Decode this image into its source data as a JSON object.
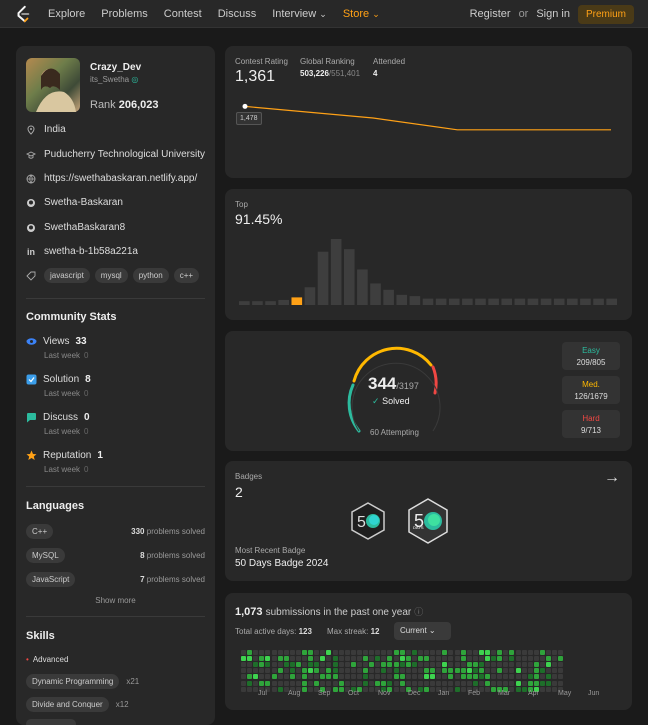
{
  "nav": {
    "items": [
      "Explore",
      "Problems",
      "Contest",
      "Discuss",
      "Interview",
      "Store"
    ],
    "register": "Register",
    "or": "or",
    "signin": "Sign in",
    "premium": "Premium",
    "chevron": "⌄"
  },
  "profile": {
    "name": "Crazy_Dev",
    "handle": "its_Swetha",
    "rank_label": "Rank",
    "rank": "206,023",
    "location": "India",
    "school": "Puducherry Technological University",
    "website": "https://swethabaskaran.netlify.app/",
    "github": "Swetha-Baskaran",
    "github2": "SwethaBaskaran8",
    "linkedin": "swetha-b-1b58a221a",
    "tags": [
      "javascript",
      "mysql",
      "python",
      "c++"
    ]
  },
  "community": {
    "title": "Community Stats",
    "items": [
      {
        "label": "Views",
        "value": "33",
        "last": "Last week",
        "last_val": "0",
        "color": "#3b82f6",
        "icon": "eye-icon"
      },
      {
        "label": "Solution",
        "value": "8",
        "last": "Last week",
        "last_val": "0",
        "color": "#3b9eea",
        "icon": "solution-icon"
      },
      {
        "label": "Discuss",
        "value": "0",
        "last": "Last week",
        "last_val": "0",
        "color": "#2cbb9e",
        "icon": "discuss-icon"
      },
      {
        "label": "Reputation",
        "value": "1",
        "last": "Last week",
        "last_val": "0",
        "color": "#ffa116",
        "icon": "star-icon"
      }
    ]
  },
  "languages": {
    "title": "Languages",
    "items": [
      {
        "name": "C++",
        "count": "330",
        "suffix": "problems solved"
      },
      {
        "name": "MySQL",
        "count": "8",
        "suffix": "problems solved"
      },
      {
        "name": "JavaScript",
        "count": "7",
        "suffix": "problems solved"
      }
    ],
    "show_more": "Show more"
  },
  "skills": {
    "title": "Skills",
    "level": "Advanced",
    "items": [
      {
        "name": "Dynamic Programming",
        "count": "x21"
      },
      {
        "name": "Divide and Conquer",
        "count": "x12"
      }
    ]
  },
  "contest": {
    "rating_label": "Contest Rating",
    "rating": "1,361",
    "global_label": "Global Ranking",
    "global": "503,226",
    "global_total": "/551,401",
    "attended_label": "Attended",
    "attended": "4",
    "tooltip": "1,478",
    "chart_data": {
      "type": "line",
      "x": [
        0,
        1,
        2,
        3
      ],
      "y": [
        1478,
        1420,
        1361,
        1361
      ],
      "ylim": [
        1300,
        1500
      ]
    }
  },
  "top": {
    "label": "Top",
    "value": "91.45%",
    "chart_data": {
      "type": "bar",
      "values": [
        3,
        3,
        3,
        4,
        6,
        14,
        42,
        52,
        44,
        28,
        17,
        12,
        8,
        7,
        5,
        5,
        5,
        5,
        5,
        5,
        5,
        5,
        5,
        5,
        5,
        5,
        5,
        5,
        5
      ],
      "highlight_index": 4
    }
  },
  "solved": {
    "solved": "344",
    "total": "/3197",
    "solved_label": "Solved",
    "check": "✓",
    "attempting": "60 Attempting",
    "easy_label": "Easy",
    "easy": "209/805",
    "med_label": "Med.",
    "med": "126/1679",
    "hard_label": "Hard",
    "hard": "9/713",
    "colors": {
      "easy": "#2cbb9e",
      "med": "#ffb800",
      "hard": "#ef4743"
    }
  },
  "badges": {
    "label": "Badges",
    "count": "2",
    "recent_label": "Most Recent Badge",
    "recent": "50 Days Badge 2024",
    "badge_text": "50",
    "badge_days": "DAYS",
    "arrow": "→"
  },
  "submissions": {
    "count": "1,073",
    "text": "submissions in the past one year",
    "active_label": "Total active days:",
    "active": "123",
    "streak_label": "Max streak:",
    "streak": "12",
    "dropdown": "Current",
    "months": [
      "Jul",
      "Aug",
      "Sep",
      "Oct",
      "Nov",
      "Dec",
      "Jan",
      "Feb",
      "Mar",
      "Apr",
      "May",
      "Jun"
    ]
  }
}
